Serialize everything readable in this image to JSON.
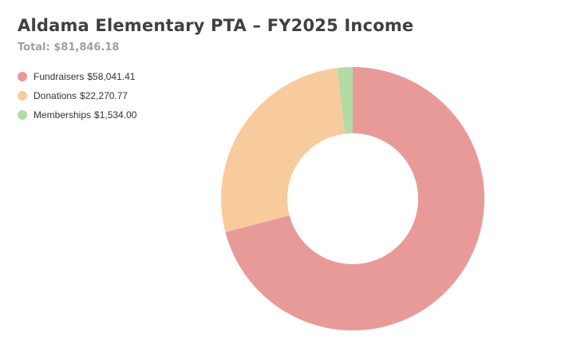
{
  "chart_data": {
    "type": "pie",
    "title": "Aldama Elementary PTA – FY2025 Income",
    "subtitle": "Total: $81,846.18",
    "series": [
      {
        "name": "Fundraisers",
        "label": "$58,041.41",
        "value": 58041.41,
        "color": "#e89a99"
      },
      {
        "name": "Donations",
        "label": "$22,270.77",
        "value": 22270.77,
        "color": "#f8cb9d"
      },
      {
        "name": "Memberships",
        "label": "$1,534.00",
        "value": 1534.0,
        "color": "#b3dba4"
      }
    ],
    "legend_position": "top-left",
    "donut": true
  }
}
